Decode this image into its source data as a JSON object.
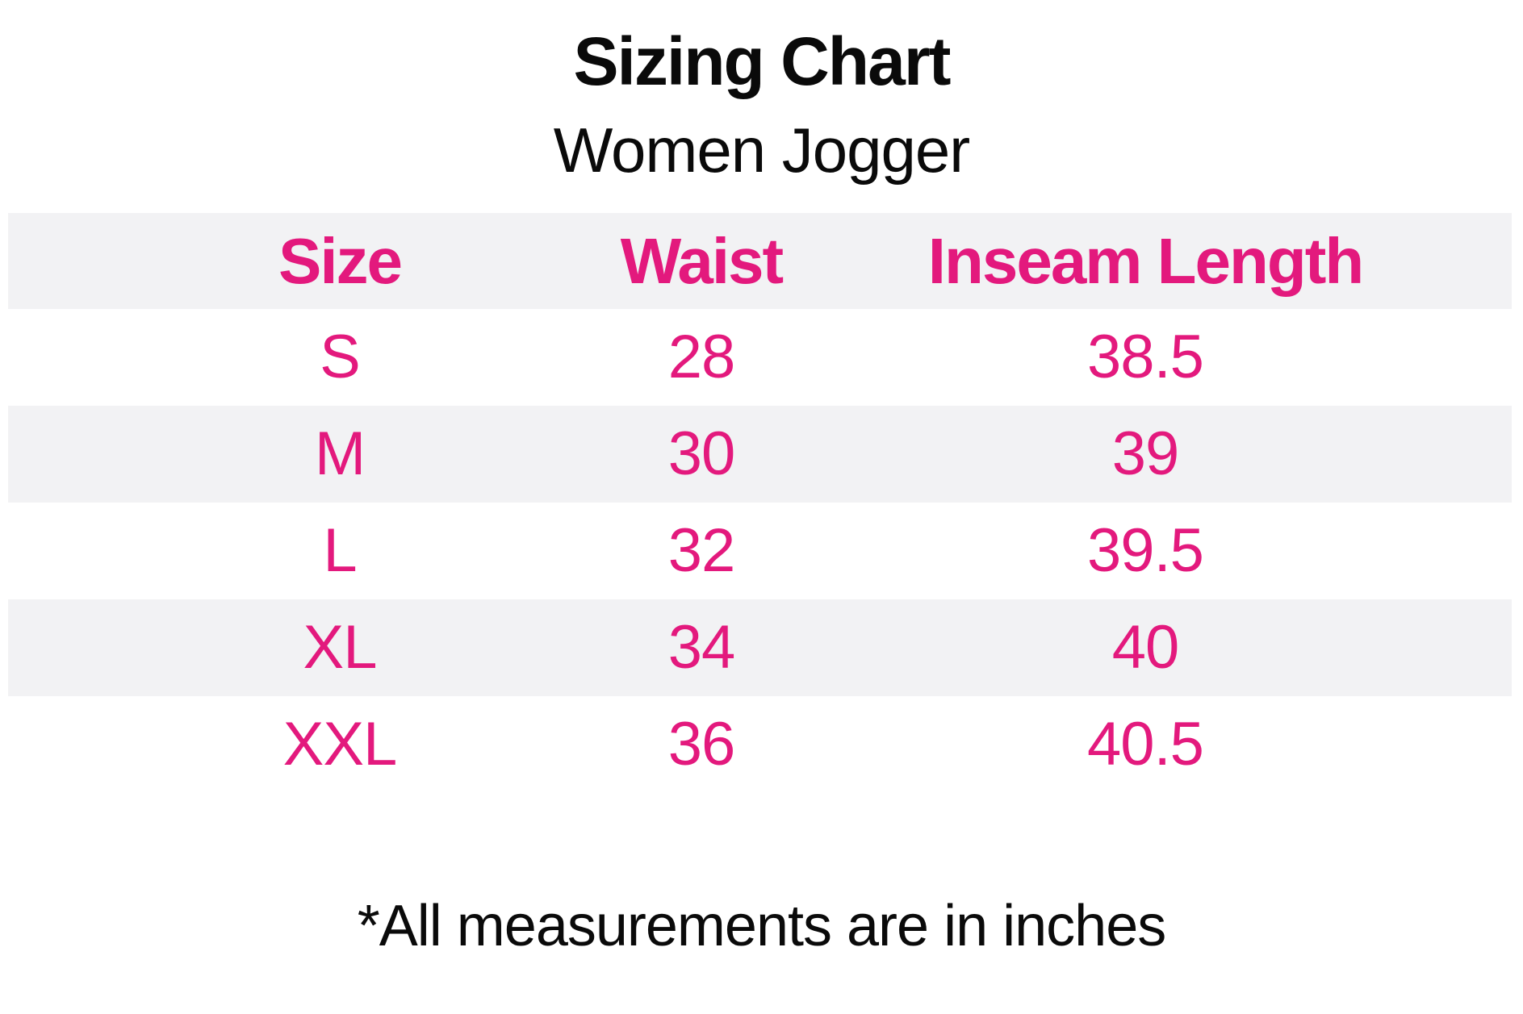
{
  "page": {
    "title": "Sizing Chart",
    "subtitle": "Women Jogger",
    "footnote": "*All measurements are in inches"
  },
  "chart_data": {
    "type": "table",
    "title": "Sizing Chart",
    "subtitle": "Women Jogger",
    "columns": [
      "Size",
      "Waist",
      "Inseam Length"
    ],
    "rows": [
      [
        "S",
        28,
        38.5
      ],
      [
        "M",
        30,
        39
      ],
      [
        "L",
        32,
        39.5
      ],
      [
        "XL",
        34,
        40
      ],
      [
        "XXL",
        36,
        40.5
      ]
    ],
    "units": "inches",
    "footnote": "*All measurements are in inches",
    "layout": {
      "striped_rows": true,
      "shaded_rows": [
        "header",
        "M",
        "XL"
      ],
      "legend": "none",
      "grid": "off"
    }
  },
  "table": {
    "headers": [
      "Size",
      "Waist",
      "Inseam Length"
    ],
    "rows": [
      [
        "S",
        "28",
        "38.5"
      ],
      [
        "M",
        "30",
        "39"
      ],
      [
        "L",
        "32",
        "39.5"
      ],
      [
        "XL",
        "34",
        "40"
      ],
      [
        "XXL",
        "36",
        "40.5"
      ]
    ]
  },
  "colors": {
    "accent_pink": "#e3197d",
    "stripe_gray": "#f2f2f4",
    "ink_black": "#0a0a0a",
    "background_white": "#ffffff"
  }
}
